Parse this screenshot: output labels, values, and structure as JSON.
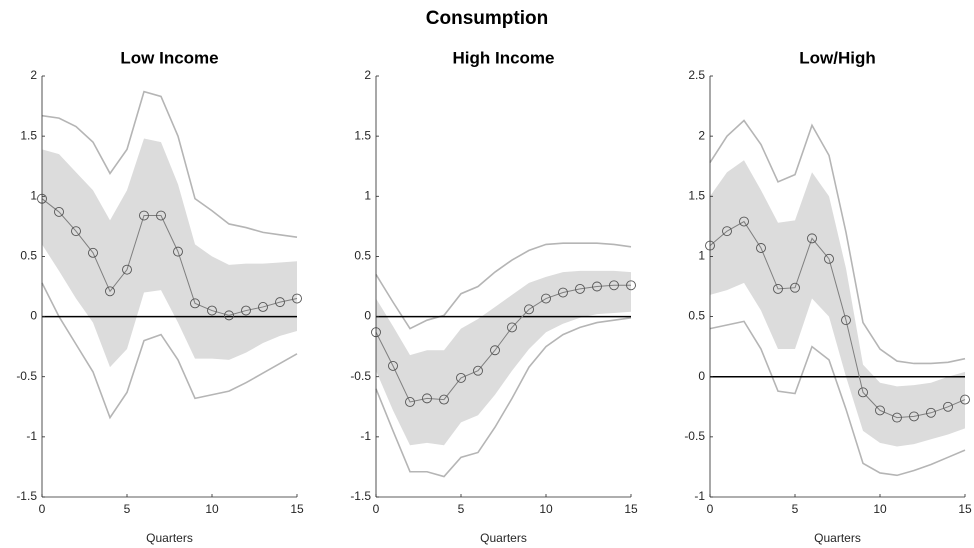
{
  "title": "Consumption",
  "chart_data": [
    {
      "type": "line",
      "title": "Low Income",
      "xlabel": "Quarters",
      "x": [
        0,
        1,
        2,
        3,
        4,
        5,
        6,
        7,
        8,
        9,
        10,
        11,
        12,
        13,
        14,
        15
      ],
      "xlim": [
        0,
        15
      ],
      "xticks": [
        0,
        5,
        10,
        15
      ],
      "ylim": [
        -1.5,
        2
      ],
      "yticks": [
        -1.5,
        -1,
        -0.5,
        0,
        0.5,
        1,
        1.5,
        2
      ],
      "reference_line": 0,
      "estimate": {
        "color": "#7f7f7f",
        "values": [
          0.98,
          0.87,
          0.71,
          0.53,
          0.21,
          0.39,
          0.84,
          0.84,
          0.54,
          0.11,
          0.05,
          0.01,
          0.05,
          0.08,
          0.12,
          0.15
        ]
      },
      "inner_band": {
        "color": "#dcdcdc",
        "upper": [
          1.39,
          1.35,
          1.2,
          1.05,
          0.8,
          1.05,
          1.48,
          1.45,
          1.1,
          0.6,
          0.5,
          0.43,
          0.44,
          0.44,
          0.45,
          0.46
        ],
        "lower": [
          0.6,
          0.38,
          0.15,
          -0.05,
          -0.42,
          -0.27,
          0.2,
          0.22,
          -0.05,
          -0.35,
          -0.35,
          -0.36,
          -0.3,
          -0.22,
          -0.16,
          -0.12
        ]
      },
      "outer_band": {
        "color": "#b5b5b5",
        "upper": [
          1.67,
          1.65,
          1.58,
          1.45,
          1.19,
          1.39,
          1.87,
          1.83,
          1.5,
          0.98,
          0.88,
          0.77,
          0.74,
          0.7,
          0.68,
          0.66
        ],
        "lower": [
          0.28,
          0.0,
          -0.23,
          -0.46,
          -0.84,
          -0.63,
          -0.2,
          -0.15,
          -0.36,
          -0.68,
          -0.65,
          -0.62,
          -0.55,
          -0.47,
          -0.39,
          -0.31
        ]
      }
    },
    {
      "type": "line",
      "title": "High Income",
      "xlabel": "Quarters",
      "x": [
        0,
        1,
        2,
        3,
        4,
        5,
        6,
        7,
        8,
        9,
        10,
        11,
        12,
        13,
        14,
        15
      ],
      "xlim": [
        0,
        15
      ],
      "xticks": [
        0,
        5,
        10,
        15
      ],
      "ylim": [
        -1.5,
        2
      ],
      "yticks": [
        -1.5,
        -1,
        -0.5,
        0,
        0.5,
        1,
        1.5,
        2
      ],
      "reference_line": 0,
      "estimate": {
        "color": "#7f7f7f",
        "values": [
          -0.13,
          -0.41,
          -0.71,
          -0.68,
          -0.69,
          -0.51,
          -0.45,
          -0.28,
          -0.09,
          0.06,
          0.15,
          0.2,
          0.23,
          0.25,
          0.26,
          0.26
        ]
      },
      "inner_band": {
        "color": "#dcdcdc",
        "upper": [
          0.15,
          -0.08,
          -0.32,
          -0.28,
          -0.28,
          -0.1,
          -0.02,
          0.08,
          0.18,
          0.28,
          0.33,
          0.37,
          0.38,
          0.38,
          0.38,
          0.37
        ],
        "lower": [
          -0.45,
          -0.78,
          -1.07,
          -1.05,
          -1.07,
          -0.88,
          -0.82,
          -0.65,
          -0.45,
          -0.27,
          -0.13,
          -0.06,
          -0.01,
          0.02,
          0.03,
          0.04
        ]
      },
      "outer_band": {
        "color": "#b5b5b5",
        "upper": [
          0.35,
          0.12,
          -0.1,
          -0.03,
          0.01,
          0.19,
          0.25,
          0.37,
          0.47,
          0.55,
          0.6,
          0.61,
          0.61,
          0.61,
          0.6,
          0.58
        ],
        "lower": [
          -0.6,
          -0.95,
          -1.29,
          -1.29,
          -1.33,
          -1.17,
          -1.13,
          -0.92,
          -0.68,
          -0.42,
          -0.25,
          -0.15,
          -0.09,
          -0.05,
          -0.03,
          -0.01
        ]
      }
    },
    {
      "type": "line",
      "title": "Low/High",
      "xlabel": "Quarters",
      "x": [
        0,
        1,
        2,
        3,
        4,
        5,
        6,
        7,
        8,
        9,
        10,
        11,
        12,
        13,
        14,
        15
      ],
      "xlim": [
        0,
        15
      ],
      "xticks": [
        0,
        5,
        10,
        15
      ],
      "ylim": [
        -1,
        2.5
      ],
      "yticks": [
        -1,
        -0.5,
        0,
        0.5,
        1,
        1.5,
        2,
        2.5
      ],
      "reference_line": 0,
      "estimate": {
        "color": "#7f7f7f",
        "values": [
          1.09,
          1.21,
          1.29,
          1.07,
          0.73,
          0.74,
          1.15,
          0.98,
          0.47,
          -0.13,
          -0.28,
          -0.34,
          -0.33,
          -0.3,
          -0.25,
          -0.19
        ]
      },
      "inner_band": {
        "color": "#dcdcdc",
        "upper": [
          1.5,
          1.7,
          1.8,
          1.55,
          1.28,
          1.3,
          1.7,
          1.5,
          0.9,
          0.1,
          -0.05,
          -0.08,
          -0.07,
          -0.05,
          0.0,
          0.04
        ],
        "lower": [
          0.68,
          0.72,
          0.78,
          0.55,
          0.23,
          0.23,
          0.65,
          0.5,
          0.0,
          -0.45,
          -0.55,
          -0.58,
          -0.56,
          -0.52,
          -0.48,
          -0.43
        ]
      },
      "outer_band": {
        "color": "#b5b5b5",
        "upper": [
          1.78,
          2.0,
          2.13,
          1.93,
          1.62,
          1.68,
          2.09,
          1.84,
          1.2,
          0.45,
          0.23,
          0.13,
          0.11,
          0.11,
          0.12,
          0.15
        ],
        "lower": [
          0.4,
          0.43,
          0.46,
          0.23,
          -0.12,
          -0.14,
          0.25,
          0.14,
          -0.27,
          -0.72,
          -0.8,
          -0.82,
          -0.78,
          -0.73,
          -0.67,
          -0.61
        ]
      }
    }
  ]
}
